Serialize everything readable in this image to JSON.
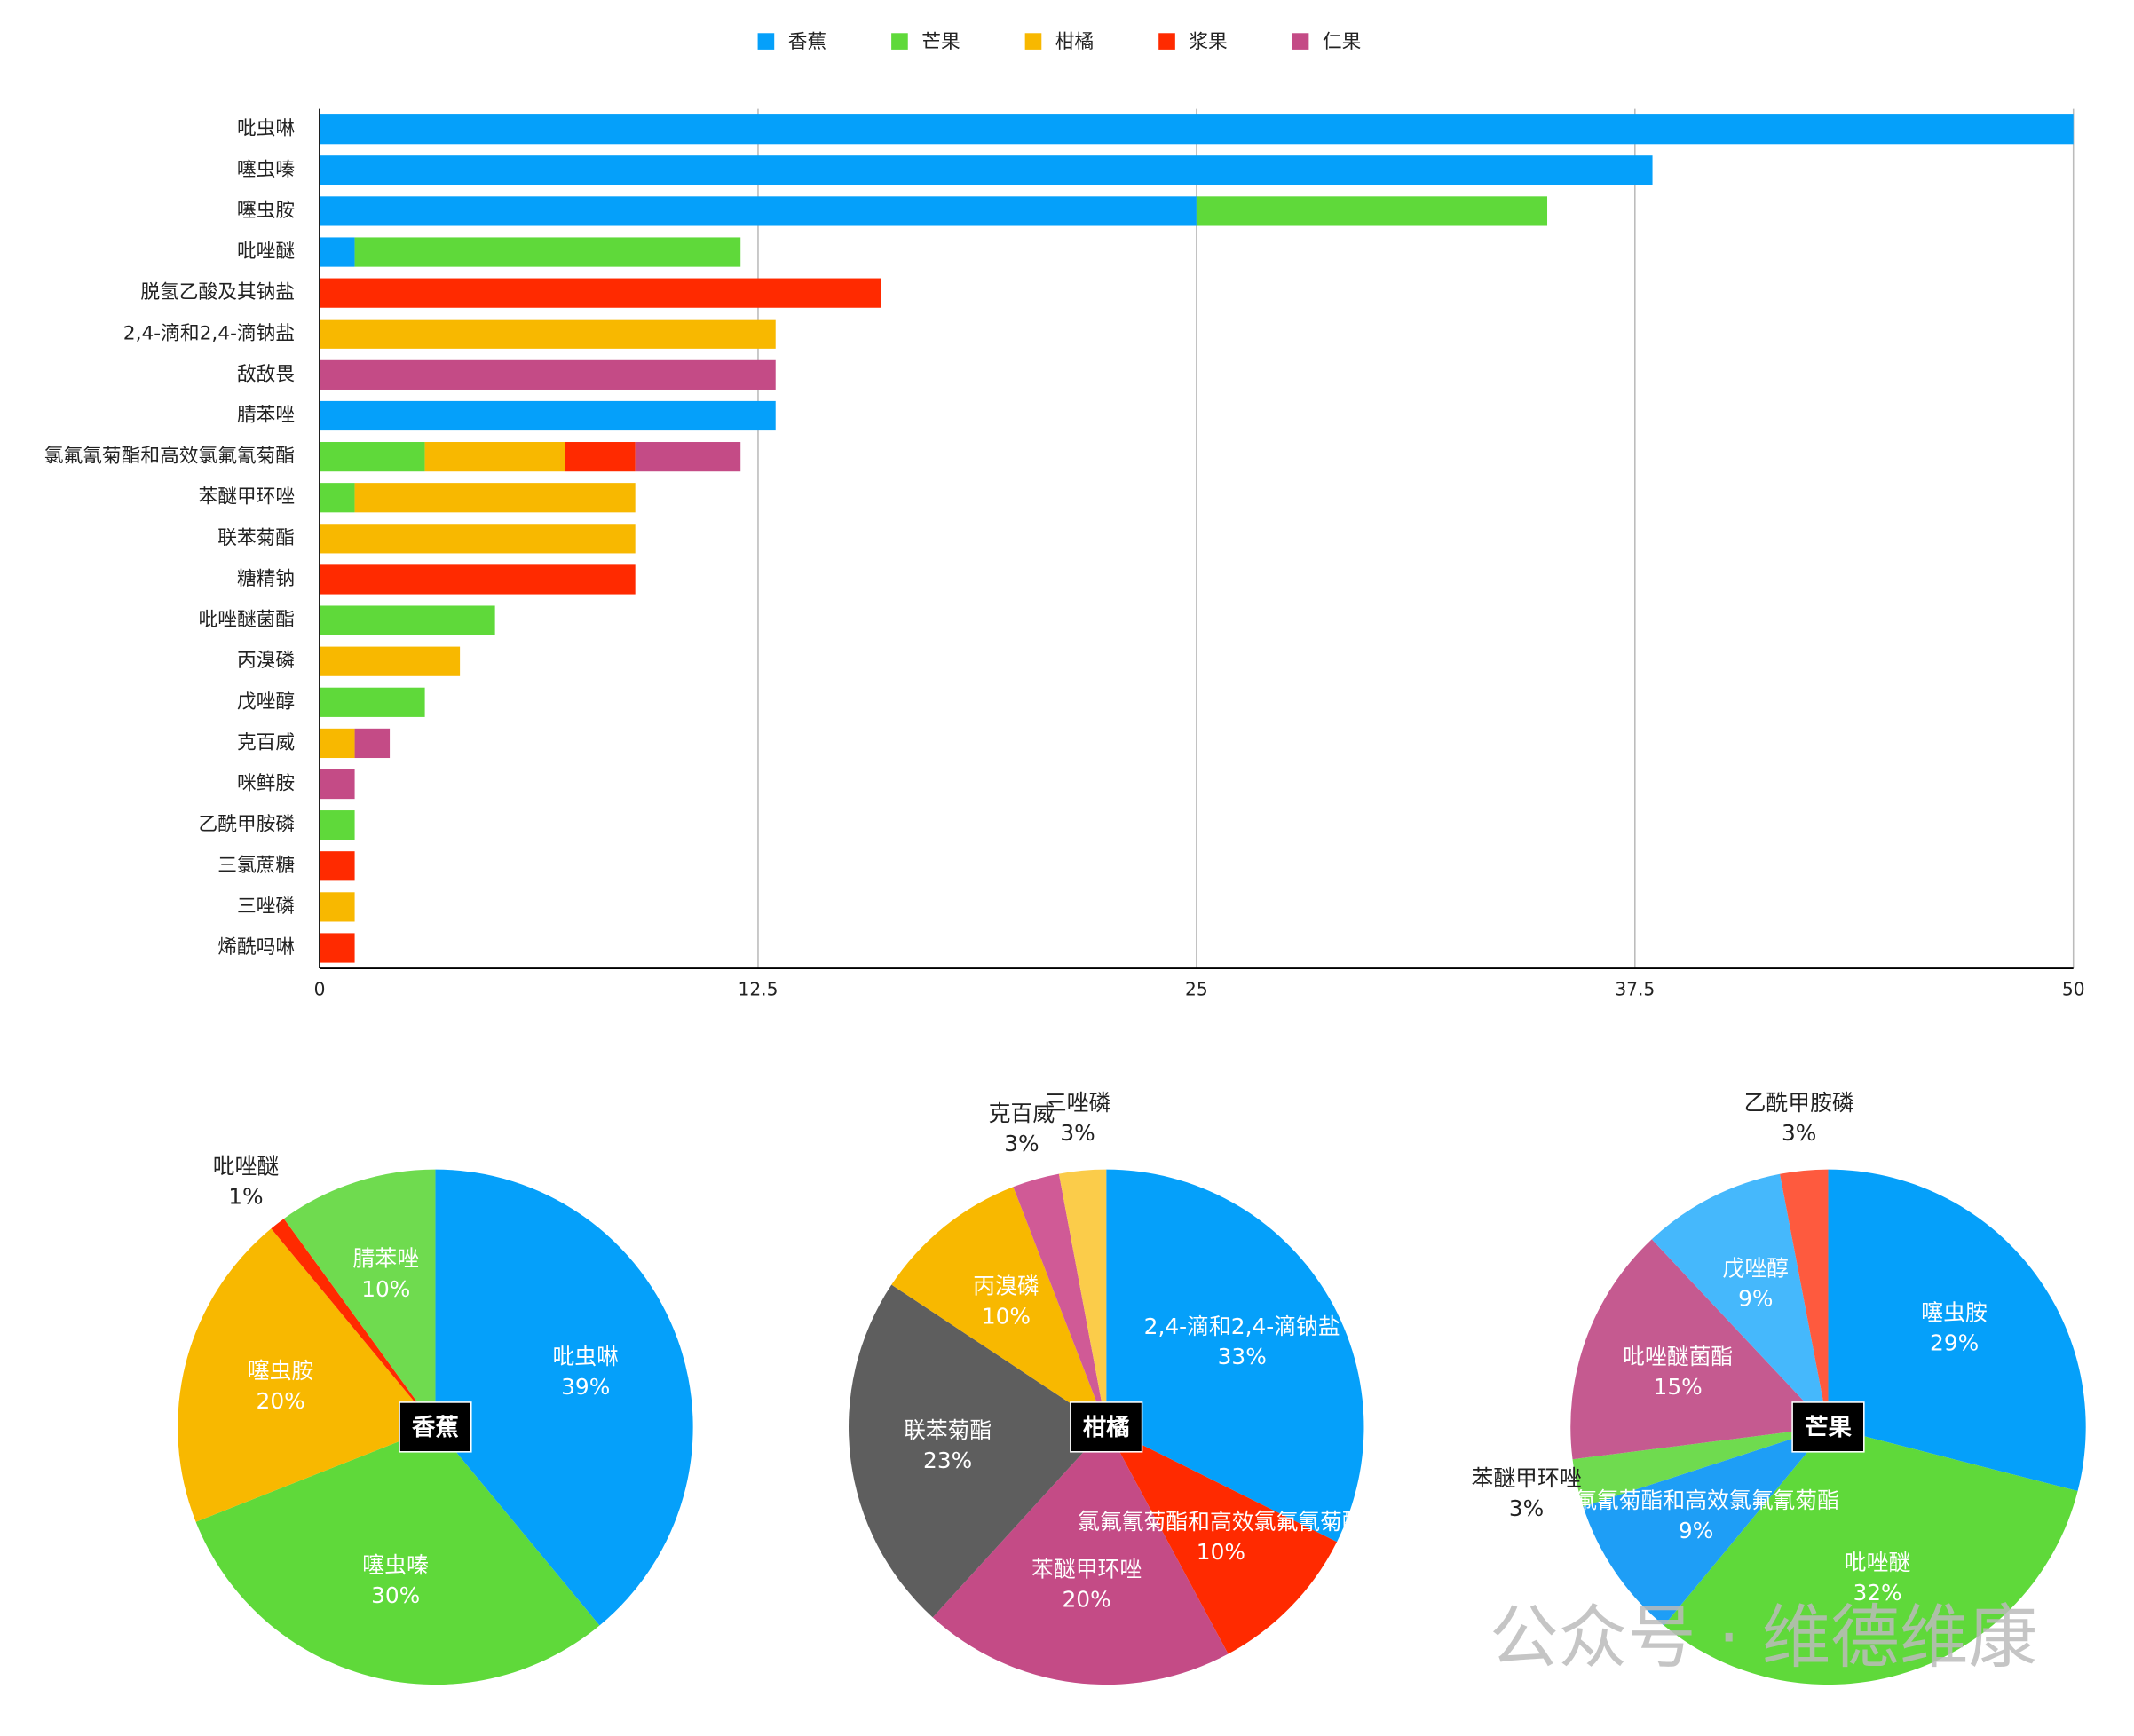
{
  "chart_data": [
    {
      "type": "bar",
      "orientation": "horizontal",
      "stacked": true,
      "grid": true,
      "categories": [
        "吡虫啉",
        "噻虫嗪",
        "噻虫胺",
        "吡唑醚",
        "脱氢乙酸及其钠盐",
        "2,4-滴和2,4-滴钠盐",
        "敌敌畏",
        "腈苯唑",
        "氯氟氰菊酯和高效氯氟氰菊酯",
        "苯醚甲环唑",
        "联苯菊酯",
        "糖精钠",
        "吡唑醚菌酯",
        "丙溴磷",
        "戊唑醇",
        "克百威",
        "咪鲜胺",
        "乙酰甲胺磷",
        "三氯蔗糖",
        "三唑磷",
        "烯酰吗啉"
      ],
      "series": [
        {
          "name": "香蕉",
          "color": "#05a0fa",
          "values": [
            50,
            38,
            25,
            1,
            null,
            null,
            null,
            13,
            null,
            null,
            null,
            null,
            null,
            null,
            null,
            null,
            null,
            null,
            null,
            null,
            null
          ]
        },
        {
          "name": "芒果",
          "color": "#5fd93a",
          "values": [
            null,
            null,
            10,
            11,
            null,
            null,
            null,
            null,
            3,
            1,
            null,
            null,
            5,
            null,
            3,
            null,
            null,
            1,
            null,
            null,
            null
          ]
        },
        {
          "name": "柑橘",
          "color": "#f8b800",
          "values": [
            null,
            null,
            null,
            null,
            null,
            13,
            null,
            null,
            4,
            8,
            9,
            null,
            null,
            4,
            null,
            1,
            null,
            null,
            null,
            1,
            null
          ]
        },
        {
          "name": "浆果",
          "color": "#ff2a00",
          "values": [
            null,
            null,
            null,
            null,
            16,
            null,
            null,
            null,
            2,
            null,
            null,
            9,
            null,
            null,
            null,
            null,
            null,
            null,
            1,
            null,
            1
          ]
        },
        {
          "name": "仁果",
          "color": "#c44b86",
          "values": [
            null,
            null,
            null,
            null,
            null,
            null,
            13,
            null,
            3,
            null,
            null,
            null,
            null,
            null,
            null,
            1,
            1,
            null,
            null,
            null,
            null
          ]
        }
      ],
      "xlim": [
        0,
        50
      ],
      "xticks": [
        0,
        12.5,
        25,
        37.5,
        50
      ],
      "legend": "top"
    },
    {
      "type": "pie",
      "title": "香蕉",
      "labels": [
        "吡虫啉",
        "噻虫嗪",
        "噻虫胺",
        "吡唑醚",
        "腈苯唑"
      ],
      "values": [
        39,
        30,
        20,
        1,
        10
      ],
      "value_labels": [
        "39%",
        "30%",
        "20%",
        "1%",
        "10%"
      ],
      "colors": [
        "#05a0fa",
        "#5fd93a",
        "#f8b800",
        "#ff2a00",
        "#6fdb4f"
      ]
    },
    {
      "type": "pie",
      "title": "柑橘",
      "labels": [
        "2,4-滴和2,4-滴钠盐",
        "氯氟氰菊酯和高效氯氟氰菊酯",
        "苯醚甲环唑",
        "联苯菊酯",
        "丙溴磷",
        "克百威",
        "三唑磷"
      ],
      "values": [
        33,
        10,
        20,
        23,
        10,
        3,
        3
      ],
      "value_labels": [
        "33%",
        "10%",
        "20%",
        "23%",
        "10%",
        "3%",
        "3%"
      ],
      "colors": [
        "#05a0fa",
        "#ff2a00",
        "#c44b86",
        "#5e5e5e",
        "#f8b800",
        "#d05a96",
        "#fbcc4a"
      ]
    },
    {
      "type": "pie",
      "title": "芒果",
      "labels": [
        "噻虫胺",
        "吡唑醚",
        "氯氟氰菊酯和高效氯氟氰菊酯",
        "苯醚甲环唑",
        "吡唑醚菌酯",
        "戊唑醇",
        "乙酰甲胺磷"
      ],
      "values": [
        29,
        32,
        9,
        3,
        15,
        9,
        3
      ],
      "value_labels": [
        "29%",
        "32%",
        "9%",
        "3%",
        "15%",
        "9%",
        "3%"
      ],
      "colors": [
        "#05a0fa",
        "#5fd93a",
        "#1e9ef6",
        "#6fdb4f",
        "#c55a90",
        "#45b8fc",
        "#fe5a3e"
      ]
    }
  ],
  "watermark": "公众号 · 维德维康"
}
